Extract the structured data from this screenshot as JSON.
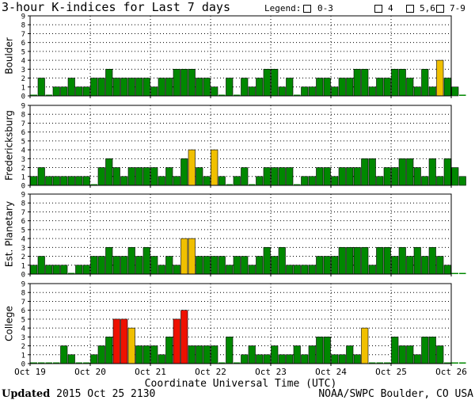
{
  "title": "3-hour K-indices for Last 7 days",
  "legend": {
    "label": "Legend:",
    "items": [
      {
        "label": "0-3",
        "color": "#008800"
      },
      {
        "label": "4",
        "color": "#f0c000"
      },
      {
        "label": "5,6",
        "color": "#ee1100"
      },
      {
        "label": "7-9",
        "color": "#330099"
      }
    ]
  },
  "footer": {
    "updated_label": "Updated",
    "updated_value": "2015 Oct 25 2130",
    "credit": "NOAA/SWPC Boulder, CO USA"
  },
  "chart_data": {
    "type": "bar",
    "xlabel": "Coordinate Universal Time (UTC)",
    "x_tick_labels": [
      "Oct 19",
      "Oct 20",
      "Oct 21",
      "Oct 22",
      "Oct 23",
      "Oct 24",
      "Oct 25",
      "Oct 26"
    ],
    "y_tick_labels": [
      "0",
      "1",
      "2",
      "3",
      "4",
      "5",
      "6",
      "7",
      "8",
      "9"
    ],
    "ylim": [
      0,
      9
    ],
    "intervals_per_day": 8,
    "panels": [
      {
        "name": "Boulder",
        "values": [
          0,
          2,
          0,
          1,
          1,
          2,
          1,
          1,
          2,
          2,
          3,
          2,
          2,
          2,
          2,
          2,
          1,
          2,
          2,
          3,
          3,
          3,
          2,
          2,
          1,
          0,
          2,
          0,
          2,
          1,
          2,
          3,
          3,
          1,
          2,
          0,
          1,
          1,
          2,
          2,
          1,
          2,
          2,
          3,
          3,
          1,
          2,
          2,
          3,
          3,
          2,
          1,
          3,
          1,
          4,
          2,
          1,
          0
        ]
      },
      {
        "name": "Fredericksburg",
        "values": [
          1,
          2,
          1,
          1,
          1,
          1,
          1,
          1,
          0,
          2,
          3,
          2,
          1,
          2,
          2,
          2,
          2,
          1,
          2,
          1,
          3,
          4,
          2,
          1,
          4,
          1,
          0,
          1,
          2,
          0,
          1,
          2,
          2,
          2,
          2,
          0,
          1,
          1,
          2,
          2,
          1,
          2,
          2,
          2,
          3,
          3,
          1,
          2,
          2,
          3,
          3,
          2,
          1,
          3,
          1,
          3,
          2,
          1
        ]
      },
      {
        "name": "Est. Planetary",
        "values": [
          1,
          2,
          1,
          1,
          1,
          0,
          1,
          1,
          2,
          2,
          3,
          2,
          2,
          3,
          2,
          3,
          2,
          1,
          2,
          1,
          4,
          4,
          2,
          2,
          2,
          2,
          1,
          2,
          2,
          1,
          2,
          3,
          2,
          3,
          1,
          1,
          1,
          1,
          2,
          2,
          2,
          3,
          3,
          3,
          3,
          1,
          3,
          3,
          2,
          3,
          2,
          3,
          2,
          3,
          2,
          1,
          0,
          0
        ]
      },
      {
        "name": "College",
        "values": [
          0,
          0,
          0,
          0,
          2,
          1,
          0,
          0,
          1,
          2,
          3,
          5,
          5,
          4,
          2,
          2,
          2,
          1,
          3,
          5,
          6,
          2,
          2,
          2,
          2,
          0,
          3,
          0,
          1,
          2,
          1,
          1,
          2,
          1,
          1,
          2,
          1,
          2,
          3,
          3,
          1,
          1,
          2,
          1,
          4,
          0,
          0,
          0,
          3,
          2,
          2,
          1,
          3,
          3,
          2,
          0,
          0,
          0
        ]
      }
    ]
  }
}
